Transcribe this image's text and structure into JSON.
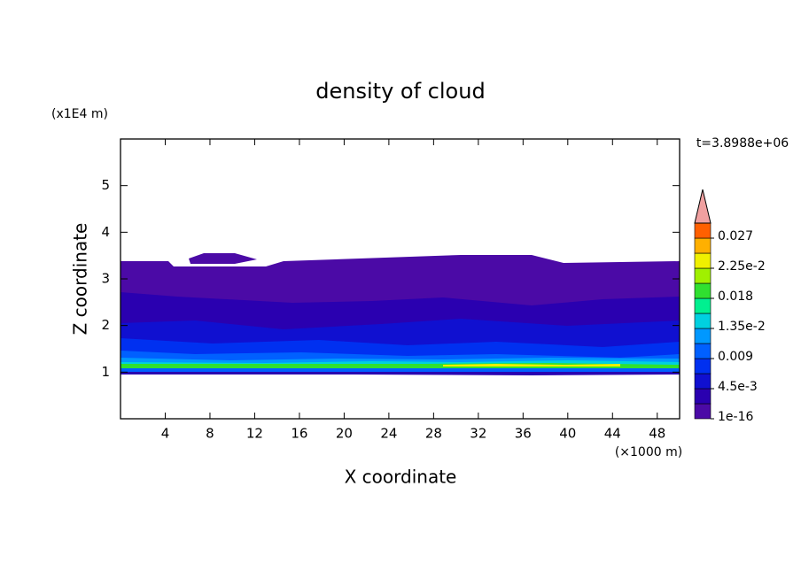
{
  "chart_data": {
    "type": "contour",
    "title": "density of cloud",
    "time_label": "t=3.8988e+06",
    "x_label": "X coordinate",
    "y_label": "Z coordinate",
    "x_unit": "(×1000 m)",
    "y_unit": "(x1E4 m)",
    "xlim": [
      0,
      50
    ],
    "xticks": [
      4,
      8,
      12,
      16,
      20,
      24,
      28,
      32,
      36,
      40,
      44,
      48
    ],
    "ylim": [
      0,
      6
    ],
    "yticks": [
      1,
      2,
      3,
      4,
      5
    ],
    "colorbar": {
      "levels": [
        1e-16,
        {
          "value": 0.0045,
          "label": "4.5e-3"
        },
        0.009,
        {
          "value": 0.0135,
          "label": "1.35e-2"
        },
        0.018,
        {
          "value": 0.0225,
          "label": "2.25e-2"
        },
        0.027
      ],
      "colors": [
        "#4b0aa6",
        "#2a00b0",
        "#1010d0",
        "#0030f0",
        "#0060ff",
        "#0098ff",
        "#00d0e0",
        "#00f090",
        "#30e030",
        "#a0f000",
        "#f0f000",
        "#ffb000",
        "#ff6000"
      ],
      "extend_color": "#f0a0a0"
    }
  }
}
